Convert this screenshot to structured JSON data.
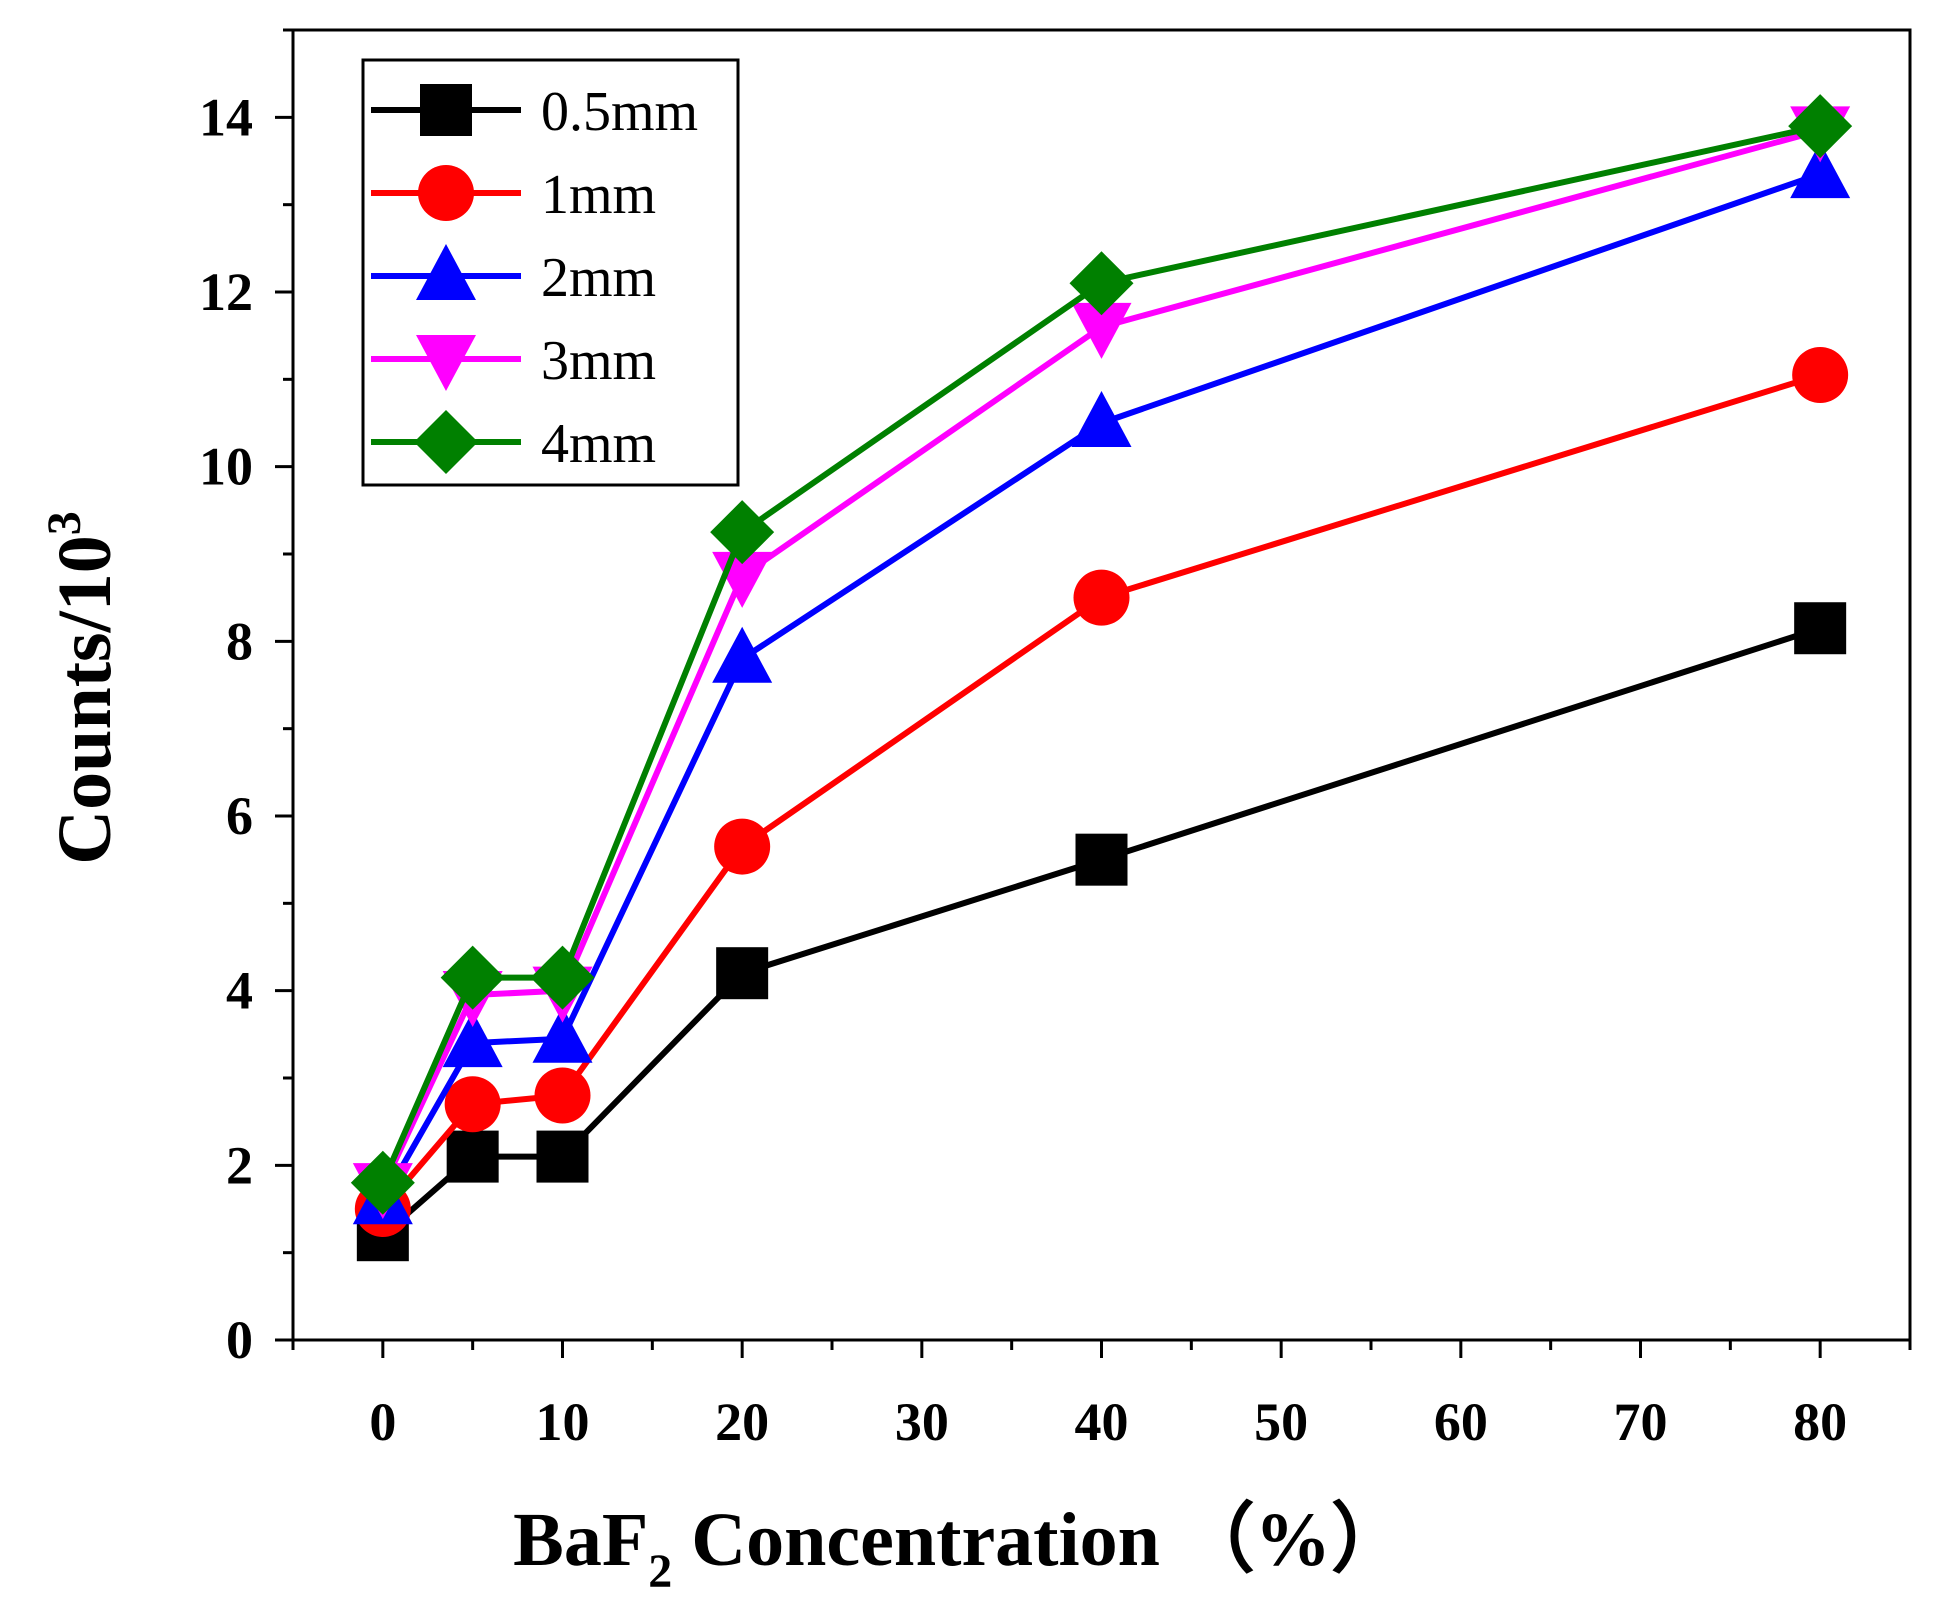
{
  "chart_data": {
    "type": "line",
    "title": "",
    "xlabel": "BaF2 Concentration （%）",
    "xlabel_parts": {
      "main": "BaF",
      "subscript": "2",
      "rest": " Concentration （%）"
    },
    "ylabel": "Counts/10^3",
    "ylabel_parts": {
      "main": "Counts/10",
      "superscript": "3"
    },
    "x": [
      0,
      5,
      10,
      20,
      40,
      80
    ],
    "x_axis_ticks": [
      0,
      10,
      20,
      30,
      40,
      50,
      60,
      70,
      80
    ],
    "x_tick_labels": [
      "0",
      "10",
      "20",
      "30",
      "40",
      "50",
      "60",
      "70",
      "80"
    ],
    "x_tick_positions": [
      0,
      10,
      20,
      30,
      40,
      50,
      60,
      70,
      80
    ],
    "x_mapping": {
      "data": [
        0,
        10,
        20,
        40,
        80
      ],
      "axis": [
        0,
        10,
        20,
        40,
        80
      ]
    },
    "ylim": [
      0,
      15
    ],
    "y_ticks": [
      0,
      2,
      4,
      6,
      8,
      10,
      12,
      14
    ],
    "y_tick_labels": [
      "0",
      "2",
      "4",
      "6",
      "8",
      "10",
      "12",
      "14"
    ],
    "legend_position": "top-left",
    "series": [
      {
        "name": "0.5mm",
        "color": "#000000",
        "marker": "square",
        "values": [
          1.2,
          2.1,
          2.1,
          4.2,
          5.5,
          8.15
        ]
      },
      {
        "name": "1mm",
        "color": "#ff0000",
        "marker": "circle",
        "values": [
          1.5,
          2.7,
          2.8,
          5.65,
          8.5,
          11.05
        ]
      },
      {
        "name": "2mm",
        "color": "#0000ff",
        "marker": "triangle-up",
        "values": [
          1.6,
          3.4,
          3.45,
          7.8,
          10.5,
          13.35
        ]
      },
      {
        "name": "3mm",
        "color": "#ff00ff",
        "marker": "triangle-down",
        "values": [
          1.75,
          3.95,
          4.0,
          8.75,
          11.6,
          13.85
        ]
      },
      {
        "name": "4mm",
        "color": "#008000",
        "marker": "diamond",
        "values": [
          1.8,
          4.15,
          4.15,
          9.25,
          12.1,
          13.9
        ]
      }
    ]
  }
}
